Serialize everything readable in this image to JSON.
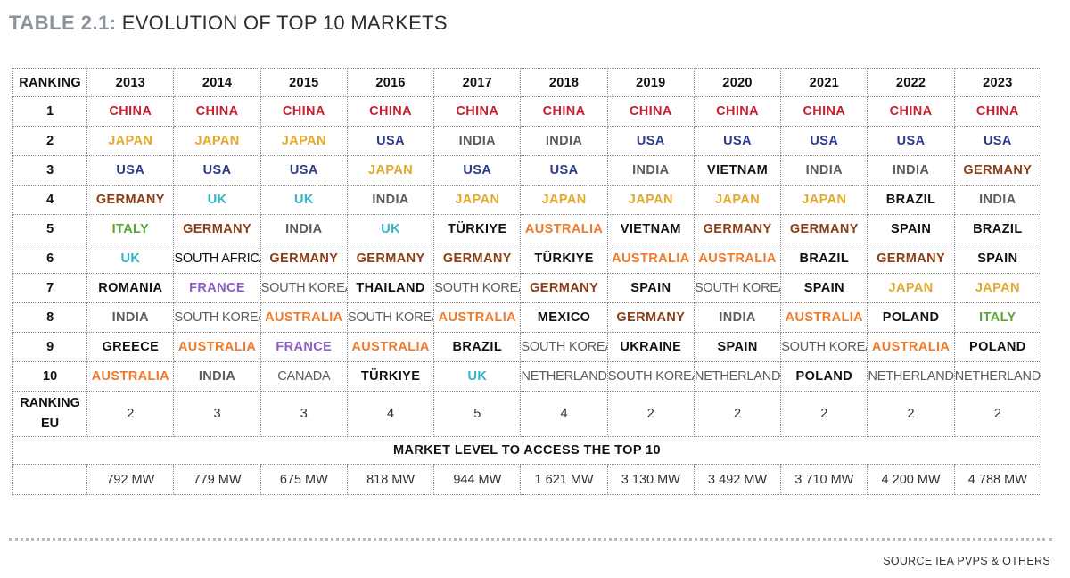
{
  "title": {
    "prefix": "TABLE 2.1:",
    "main": "EVOLUTION OF TOP 10 MARKETS"
  },
  "table": {
    "corner_label": "RANKING",
    "years": [
      "2013",
      "2014",
      "2015",
      "2016",
      "2017",
      "2018",
      "2019",
      "2020",
      "2021",
      "2022",
      "2023"
    ],
    "rows": [
      {
        "rank": "1",
        "cells": [
          {
            "t": "CHINA",
            "c": "red"
          },
          {
            "t": "CHINA",
            "c": "red"
          },
          {
            "t": "CHINA",
            "c": "red"
          },
          {
            "t": "CHINA",
            "c": "red"
          },
          {
            "t": "CHINA",
            "c": "red"
          },
          {
            "t": "CHINA",
            "c": "red"
          },
          {
            "t": "CHINA",
            "c": "red"
          },
          {
            "t": "CHINA",
            "c": "red"
          },
          {
            "t": "CHINA",
            "c": "red"
          },
          {
            "t": "CHINA",
            "c": "red"
          },
          {
            "t": "CHINA",
            "c": "red"
          }
        ]
      },
      {
        "rank": "2",
        "cells": [
          {
            "t": "JAPAN",
            "c": "yellow"
          },
          {
            "t": "JAPAN",
            "c": "yellow"
          },
          {
            "t": "JAPAN",
            "c": "yellow"
          },
          {
            "t": "USA",
            "c": "blue"
          },
          {
            "t": "INDIA",
            "c": "gray"
          },
          {
            "t": "INDIA",
            "c": "gray"
          },
          {
            "t": "USA",
            "c": "blue"
          },
          {
            "t": "USA",
            "c": "blue"
          },
          {
            "t": "USA",
            "c": "blue"
          },
          {
            "t": "USA",
            "c": "blue"
          },
          {
            "t": "USA",
            "c": "blue"
          }
        ]
      },
      {
        "rank": "3",
        "cells": [
          {
            "t": "USA",
            "c": "blue"
          },
          {
            "t": "USA",
            "c": "blue"
          },
          {
            "t": "USA",
            "c": "blue"
          },
          {
            "t": "JAPAN",
            "c": "yellow"
          },
          {
            "t": "USA",
            "c": "blue"
          },
          {
            "t": "USA",
            "c": "blue"
          },
          {
            "t": "INDIA",
            "c": "gray"
          },
          {
            "t": "VIETNAM",
            "c": "black"
          },
          {
            "t": "INDIA",
            "c": "gray"
          },
          {
            "t": "INDIA",
            "c": "gray"
          },
          {
            "t": "GERMANY",
            "c": "brown"
          }
        ]
      },
      {
        "rank": "4",
        "cells": [
          {
            "t": "GERMANY",
            "c": "brown"
          },
          {
            "t": "UK",
            "c": "teal"
          },
          {
            "t": "UK",
            "c": "teal"
          },
          {
            "t": "INDIA",
            "c": "gray"
          },
          {
            "t": "JAPAN",
            "c": "yellow"
          },
          {
            "t": "JAPAN",
            "c": "yellow"
          },
          {
            "t": "JAPAN",
            "c": "yellow"
          },
          {
            "t": "JAPAN",
            "c": "yellow"
          },
          {
            "t": "JAPAN",
            "c": "yellow"
          },
          {
            "t": "BRAZIL",
            "c": "black"
          },
          {
            "t": "INDIA",
            "c": "gray"
          }
        ]
      },
      {
        "rank": "5",
        "cells": [
          {
            "t": "ITALY",
            "c": "green"
          },
          {
            "t": "GERMANY",
            "c": "brown"
          },
          {
            "t": "INDIA",
            "c": "gray"
          },
          {
            "t": "UK",
            "c": "teal"
          },
          {
            "t": "TÜRKIYE",
            "c": "black"
          },
          {
            "t": "AUSTRALIA",
            "c": "orange"
          },
          {
            "t": "VIETNAM",
            "c": "black"
          },
          {
            "t": "GERMANY",
            "c": "brown"
          },
          {
            "t": "GERMANY",
            "c": "brown"
          },
          {
            "t": "SPAIN",
            "c": "black"
          },
          {
            "t": "BRAZIL",
            "c": "black"
          }
        ]
      },
      {
        "rank": "6",
        "cells": [
          {
            "t": "UK",
            "c": "teal"
          },
          {
            "t": "SOUTH AFRICA",
            "c": "black",
            "thin": true
          },
          {
            "t": "GERMANY",
            "c": "brown"
          },
          {
            "t": "GERMANY",
            "c": "brown"
          },
          {
            "t": "GERMANY",
            "c": "brown"
          },
          {
            "t": "TÜRKIYE",
            "c": "black"
          },
          {
            "t": "AUSTRALIA",
            "c": "orange"
          },
          {
            "t": "AUSTRALIA",
            "c": "orange"
          },
          {
            "t": "BRAZIL",
            "c": "black"
          },
          {
            "t": "GERMANY",
            "c": "brown"
          },
          {
            "t": "SPAIN",
            "c": "black"
          }
        ]
      },
      {
        "rank": "7",
        "cells": [
          {
            "t": "ROMANIA",
            "c": "black"
          },
          {
            "t": "FRANCE",
            "c": "purple"
          },
          {
            "t": "SOUTH KOREA",
            "c": "gray",
            "thin": true
          },
          {
            "t": "THAILAND",
            "c": "black"
          },
          {
            "t": "SOUTH KOREA",
            "c": "gray",
            "thin": true
          },
          {
            "t": "GERMANY",
            "c": "brown"
          },
          {
            "t": "SPAIN",
            "c": "black"
          },
          {
            "t": "SOUTH KOREA",
            "c": "gray",
            "thin": true
          },
          {
            "t": "SPAIN",
            "c": "black"
          },
          {
            "t": "JAPAN",
            "c": "yellow"
          },
          {
            "t": "JAPAN",
            "c": "yellow"
          }
        ]
      },
      {
        "rank": "8",
        "cells": [
          {
            "t": "INDIA",
            "c": "gray"
          },
          {
            "t": "SOUTH KOREA",
            "c": "gray",
            "thin": true
          },
          {
            "t": "AUSTRALIA",
            "c": "orange"
          },
          {
            "t": "SOUTH KOREA",
            "c": "gray",
            "thin": true
          },
          {
            "t": "AUSTRALIA",
            "c": "orange"
          },
          {
            "t": "MEXICO",
            "c": "black"
          },
          {
            "t": "GERMANY",
            "c": "brown"
          },
          {
            "t": "INDIA",
            "c": "gray"
          },
          {
            "t": "AUSTRALIA",
            "c": "orange"
          },
          {
            "t": "POLAND",
            "c": "black"
          },
          {
            "t": "ITALY",
            "c": "green"
          }
        ]
      },
      {
        "rank": "9",
        "cells": [
          {
            "t": "GREECE",
            "c": "black"
          },
          {
            "t": "AUSTRALIA",
            "c": "orange"
          },
          {
            "t": "FRANCE",
            "c": "purple"
          },
          {
            "t": "AUSTRALIA",
            "c": "orange"
          },
          {
            "t": "BRAZIL",
            "c": "black"
          },
          {
            "t": "SOUTH KOREA",
            "c": "gray",
            "thin": true
          },
          {
            "t": "UKRAINE",
            "c": "black"
          },
          {
            "t": "SPAIN",
            "c": "black"
          },
          {
            "t": "SOUTH KOREA",
            "c": "gray",
            "thin": true
          },
          {
            "t": "AUSTRALIA",
            "c": "orange"
          },
          {
            "t": "POLAND",
            "c": "black"
          }
        ]
      },
      {
        "rank": "10",
        "cells": [
          {
            "t": "AUSTRALIA",
            "c": "orange"
          },
          {
            "t": "INDIA",
            "c": "gray"
          },
          {
            "t": "CANADA",
            "c": "gray",
            "thin": true
          },
          {
            "t": "TÜRKIYE",
            "c": "black"
          },
          {
            "t": "UK",
            "c": "teal"
          },
          {
            "t": "NETHERLANDS",
            "c": "gray",
            "thin": true
          },
          {
            "t": "SOUTH KOREA",
            "c": "gray",
            "thin": true
          },
          {
            "t": "NETHERLANDS",
            "c": "gray",
            "thin": true
          },
          {
            "t": "POLAND",
            "c": "black"
          },
          {
            "t": "NETHERLANDS",
            "c": "gray",
            "thin": true
          },
          {
            "t": "NETHERLANDS",
            "c": "gray",
            "thin": true
          }
        ]
      }
    ],
    "ranking_eu": {
      "label_line1": "RANKING",
      "label_line2": "EU",
      "values": [
        "2",
        "3",
        "3",
        "4",
        "5",
        "4",
        "2",
        "2",
        "2",
        "2",
        "2"
      ]
    },
    "market_level": {
      "title": "MARKET LEVEL TO ACCESS THE TOP 10",
      "values": [
        "792 MW",
        "779 MW",
        "675 MW",
        "818 MW",
        "944 MW",
        "1 621 MW",
        "3 130 MW",
        "3 492 MW",
        "3 710 MW",
        "4 200 MW",
        "4 788 MW"
      ]
    }
  },
  "source": "SOURCE IEA PVPS & OTHERS",
  "colors": {
    "red": "#c8202f",
    "yellow": "#e2a92c",
    "blue": "#2d3b8c",
    "brown": "#8b3d15",
    "teal": "#33b4c6",
    "green": "#58a634",
    "black": "#111111",
    "gray": "#5c5c5c",
    "orange": "#ee7a2a",
    "purple": "#8e5cc4",
    "title_prefix": "#8a929b"
  }
}
